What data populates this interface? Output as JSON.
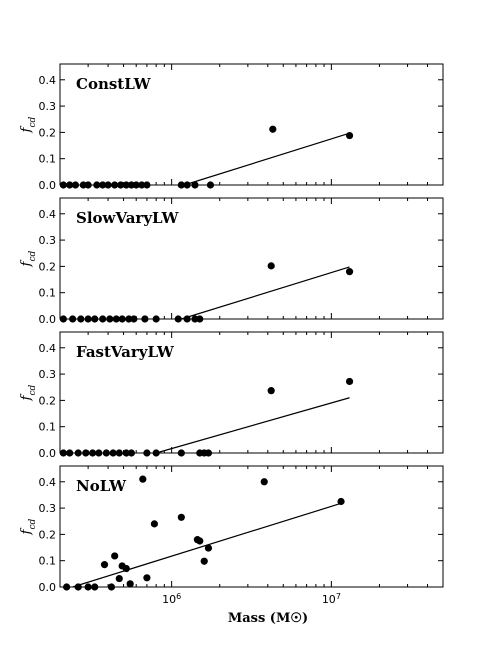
{
  "chart_data": {
    "type": "scatter",
    "xlabel": "Mass (M☉)",
    "xscale": "log",
    "xlim": [
      200000,
      50000000
    ],
    "ylim": [
      0,
      0.46
    ],
    "x_ticks": [
      {
        "value": 1000000,
        "base": "10",
        "exp": "6"
      },
      {
        "value": 10000000,
        "base": "10",
        "exp": "7"
      }
    ],
    "y_ticks": [
      "0.0",
      "0.1",
      "0.2",
      "0.3",
      "0.4"
    ],
    "ylabel_base": "f",
    "ylabel_sub": "cd",
    "marker_color": "#000000",
    "panels": [
      {
        "label": "ConstLW",
        "points": [
          [
            210000,
            0
          ],
          [
            230000,
            0
          ],
          [
            250000,
            0
          ],
          [
            280000,
            0
          ],
          [
            300000,
            0
          ],
          [
            340000,
            0
          ],
          [
            370000,
            0
          ],
          [
            400000,
            0
          ],
          [
            440000,
            0
          ],
          [
            480000,
            0
          ],
          [
            520000,
            0
          ],
          [
            560000,
            0
          ],
          [
            600000,
            0
          ],
          [
            650000,
            0
          ],
          [
            700000,
            0
          ],
          [
            1150000,
            0
          ],
          [
            1250000,
            0
          ],
          [
            1400000,
            0
          ],
          [
            1750000,
            0
          ],
          [
            4300000,
            0.212
          ],
          [
            13000000,
            0.188
          ]
        ],
        "fit": [
          [
            1200000,
            0
          ],
          [
            13000000,
            0.197
          ]
        ]
      },
      {
        "label": "SlowVaryLW",
        "points": [
          [
            210000,
            0
          ],
          [
            240000,
            0
          ],
          [
            270000,
            0
          ],
          [
            300000,
            0
          ],
          [
            330000,
            0
          ],
          [
            370000,
            0
          ],
          [
            410000,
            0
          ],
          [
            450000,
            0
          ],
          [
            490000,
            0
          ],
          [
            540000,
            0
          ],
          [
            580000,
            0
          ],
          [
            680000,
            0
          ],
          [
            800000,
            0
          ],
          [
            1100000,
            0
          ],
          [
            1250000,
            0
          ],
          [
            1400000,
            0
          ],
          [
            1500000,
            0
          ],
          [
            4200000,
            0.202
          ],
          [
            13000000,
            0.18
          ]
        ],
        "fit": [
          [
            1150000,
            0
          ],
          [
            13000000,
            0.198
          ]
        ]
      },
      {
        "label": "FastVaryLW",
        "points": [
          [
            210000,
            0
          ],
          [
            230000,
            0
          ],
          [
            260000,
            0
          ],
          [
            290000,
            0
          ],
          [
            320000,
            0
          ],
          [
            350000,
            0
          ],
          [
            390000,
            0
          ],
          [
            430000,
            0
          ],
          [
            470000,
            0
          ],
          [
            520000,
            0
          ],
          [
            560000,
            0
          ],
          [
            700000,
            0
          ],
          [
            800000,
            0
          ],
          [
            1150000,
            0
          ],
          [
            1500000,
            0
          ],
          [
            1600000,
            0
          ],
          [
            1700000,
            0
          ],
          [
            4200000,
            0.237
          ],
          [
            13000000,
            0.272
          ]
        ],
        "fit": [
          [
            800000,
            0
          ],
          [
            13000000,
            0.21
          ]
        ]
      },
      {
        "label": "NoLW",
        "points": [
          [
            220000,
            0
          ],
          [
            260000,
            0
          ],
          [
            300000,
            0
          ],
          [
            330000,
            0
          ],
          [
            380000,
            0.085
          ],
          [
            420000,
            0
          ],
          [
            440000,
            0.118
          ],
          [
            470000,
            0.032
          ],
          [
            490000,
            0.08
          ],
          [
            520000,
            0.07
          ],
          [
            550000,
            0.012
          ],
          [
            660000,
            0.41
          ],
          [
            700000,
            0.035
          ],
          [
            780000,
            0.24
          ],
          [
            1150000,
            0.265
          ],
          [
            1450000,
            0.18
          ],
          [
            1500000,
            0.175
          ],
          [
            1600000,
            0.098
          ],
          [
            1700000,
            0.148
          ],
          [
            3800000,
            0.4
          ],
          [
            11500000,
            0.325
          ]
        ],
        "fit": [
          [
            240000,
            0
          ],
          [
            11500000,
            0.318
          ]
        ]
      }
    ]
  }
}
